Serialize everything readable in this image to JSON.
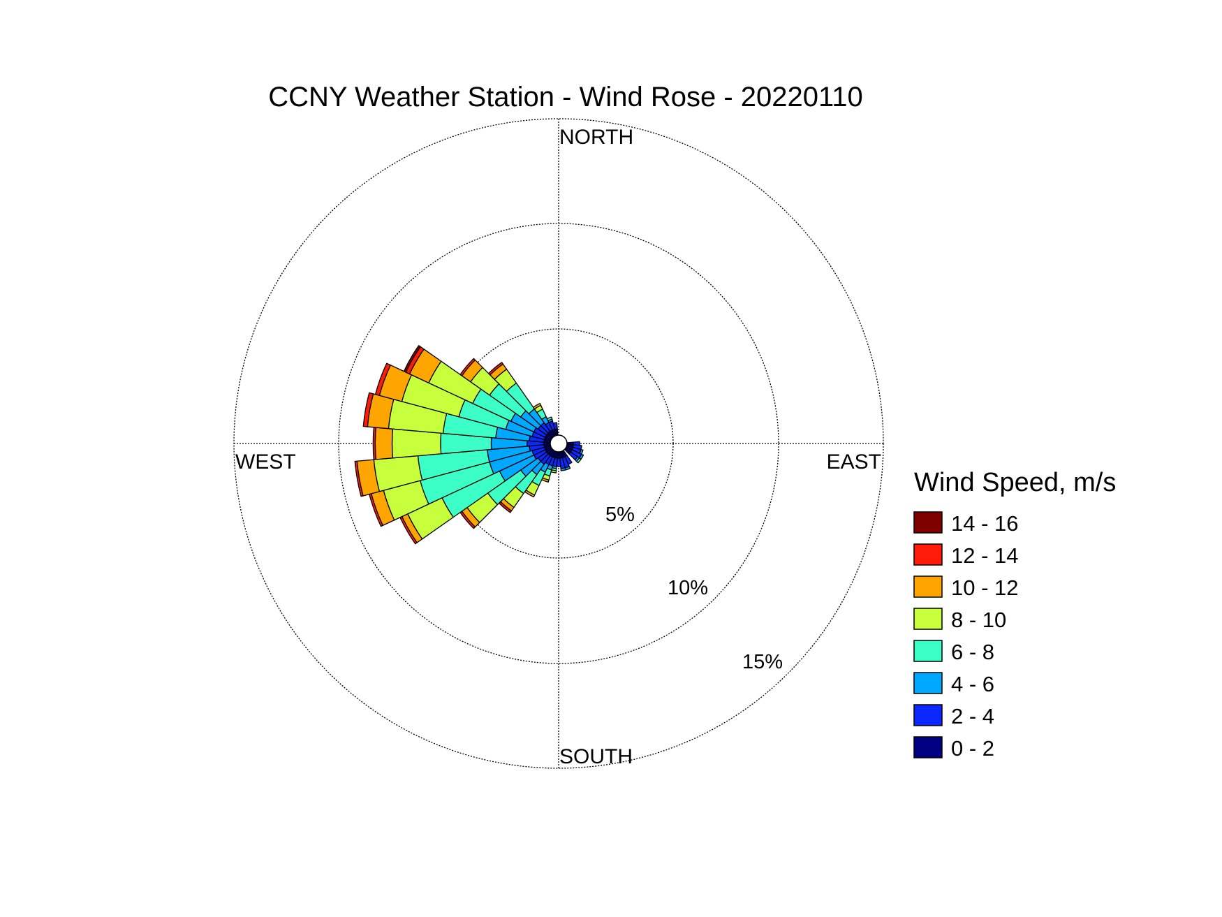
{
  "chart_data": {
    "type": "wind-rose",
    "title": "CCNY Weather Station - Wind Rose - 20220110",
    "directions": {
      "north": "NORTH",
      "south": "SOUTH",
      "east": "EAST",
      "west": "WEST"
    },
    "radial_axis": {
      "unit": "%",
      "max": 15,
      "rings": [
        {
          "value": 5,
          "label": "5%"
        },
        {
          "value": 10,
          "label": "10%"
        },
        {
          "value": 15,
          "label": "15%"
        }
      ],
      "grid": true
    },
    "legend": {
      "title": "Wind Speed, m/s",
      "position": "right",
      "bins": [
        {
          "label": "14 - 16",
          "color": "#800000"
        },
        {
          "label": "12 - 14",
          "color": "#ff1a0a"
        },
        {
          "label": "10 - 12",
          "color": "#ffa500"
        },
        {
          "label": "8 - 10",
          "color": "#c8ff3c"
        },
        {
          "label": "6 - 8",
          "color": "#3cffc8"
        },
        {
          "label": "4 - 6",
          "color": "#00a8ff"
        },
        {
          "label": "2 - 4",
          "color": "#0a28ff"
        },
        {
          "label": "0 - 2",
          "color": "#000080"
        }
      ]
    },
    "sector_width_deg": 10,
    "bins_order": [
      "0 - 2",
      "2 - 4",
      "4 - 6",
      "6 - 8",
      "8 - 10",
      "10 - 12",
      "12 - 14",
      "14 - 16"
    ],
    "sectors": [
      {
        "direction": 90,
        "values": [
          0.3,
          0.3,
          0.0,
          0.0,
          0.0,
          0.0,
          0.0,
          0.0
        ]
      },
      {
        "direction": 100,
        "values": [
          0.3,
          0.4,
          0.0,
          0.0,
          0.0,
          0.0,
          0.0,
          0.0
        ]
      },
      {
        "direction": 110,
        "values": [
          0.3,
          0.4,
          0.1,
          0.0,
          0.0,
          0.0,
          0.0,
          0.0
        ]
      },
      {
        "direction": 120,
        "values": [
          0.3,
          0.5,
          0.1,
          0.0,
          0.0,
          0.0,
          0.0,
          0.0
        ]
      },
      {
        "direction": 130,
        "values": [
          0.3,
          0.4,
          0.1,
          0.1,
          0.0,
          0.0,
          0.0,
          0.0
        ]
      },
      {
        "direction": 150,
        "values": [
          0.3,
          0.4,
          0.0,
          0.0,
          0.0,
          0.0,
          0.0,
          0.0
        ]
      },
      {
        "direction": 160,
        "values": [
          0.3,
          0.5,
          0.1,
          0.0,
          0.0,
          0.0,
          0.0,
          0.0
        ]
      },
      {
        "direction": 170,
        "values": [
          0.3,
          0.5,
          0.1,
          0.0,
          0.0,
          0.0,
          0.0,
          0.0
        ]
      },
      {
        "direction": 180,
        "values": [
          0.3,
          0.4,
          0.0,
          0.0,
          0.0,
          0.0,
          0.0,
          0.0
        ]
      },
      {
        "direction": 190,
        "values": [
          0.3,
          0.4,
          0.1,
          0.1,
          0.1,
          0.0,
          0.0,
          0.0
        ]
      },
      {
        "direction": 200,
        "values": [
          0.3,
          0.4,
          0.2,
          0.3,
          0.2,
          0.1,
          0.0,
          0.0
        ]
      },
      {
        "direction": 210,
        "values": [
          0.3,
          0.4,
          0.4,
          0.7,
          0.5,
          0.1,
          0.0,
          0.0
        ]
      },
      {
        "direction": 220,
        "values": [
          0.3,
          0.5,
          0.6,
          1.1,
          0.8,
          0.2,
          0.1,
          0.0
        ]
      },
      {
        "direction": 230,
        "values": [
          0.3,
          0.5,
          1.0,
          1.9,
          1.2,
          0.3,
          0.1,
          0.0
        ]
      },
      {
        "direction": 240,
        "values": [
          0.3,
          0.6,
          1.8,
          3.0,
          1.8,
          0.3,
          0.1,
          0.0
        ]
      },
      {
        "direction": 250,
        "values": [
          0.3,
          0.6,
          2.1,
          3.4,
          1.8,
          0.6,
          0.1,
          0.0
        ]
      },
      {
        "direction": 260,
        "values": [
          0.3,
          0.7,
          2.0,
          3.3,
          2.1,
          0.8,
          0.1,
          0.0
        ]
      },
      {
        "direction": 270,
        "values": [
          0.3,
          0.8,
          1.7,
          2.4,
          2.3,
          0.8,
          0.1,
          0.0
        ]
      },
      {
        "direction": 280,
        "values": [
          0.3,
          0.7,
          1.6,
          2.5,
          2.6,
          1.0,
          0.2,
          0.0
        ]
      },
      {
        "direction": 290,
        "values": [
          0.3,
          0.6,
          1.3,
          2.3,
          2.8,
          1.1,
          0.2,
          0.0
        ]
      },
      {
        "direction": 300,
        "values": [
          0.3,
          0.6,
          1.2,
          2.0,
          2.3,
          1.0,
          0.2,
          0.1
        ]
      },
      {
        "direction": 310,
        "values": [
          0.3,
          0.5,
          1.0,
          1.8,
          1.1,
          0.5,
          0.1,
          0.0
        ]
      },
      {
        "direction": 320,
        "values": [
          0.3,
          0.5,
          0.8,
          1.5,
          0.8,
          0.3,
          0.1,
          0.0
        ]
      },
      {
        "direction": 330,
        "values": [
          0.3,
          0.4,
          0.3,
          0.4,
          0.2,
          0.1,
          0.0,
          0.0
        ]
      },
      {
        "direction": 340,
        "values": [
          0.3,
          0.4,
          0.1,
          0.1,
          0.0,
          0.0,
          0.0,
          0.0
        ]
      },
      {
        "direction": 350,
        "values": [
          0.3,
          0.3,
          0.0,
          0.0,
          0.0,
          0.0,
          0.0,
          0.0
        ]
      }
    ]
  }
}
